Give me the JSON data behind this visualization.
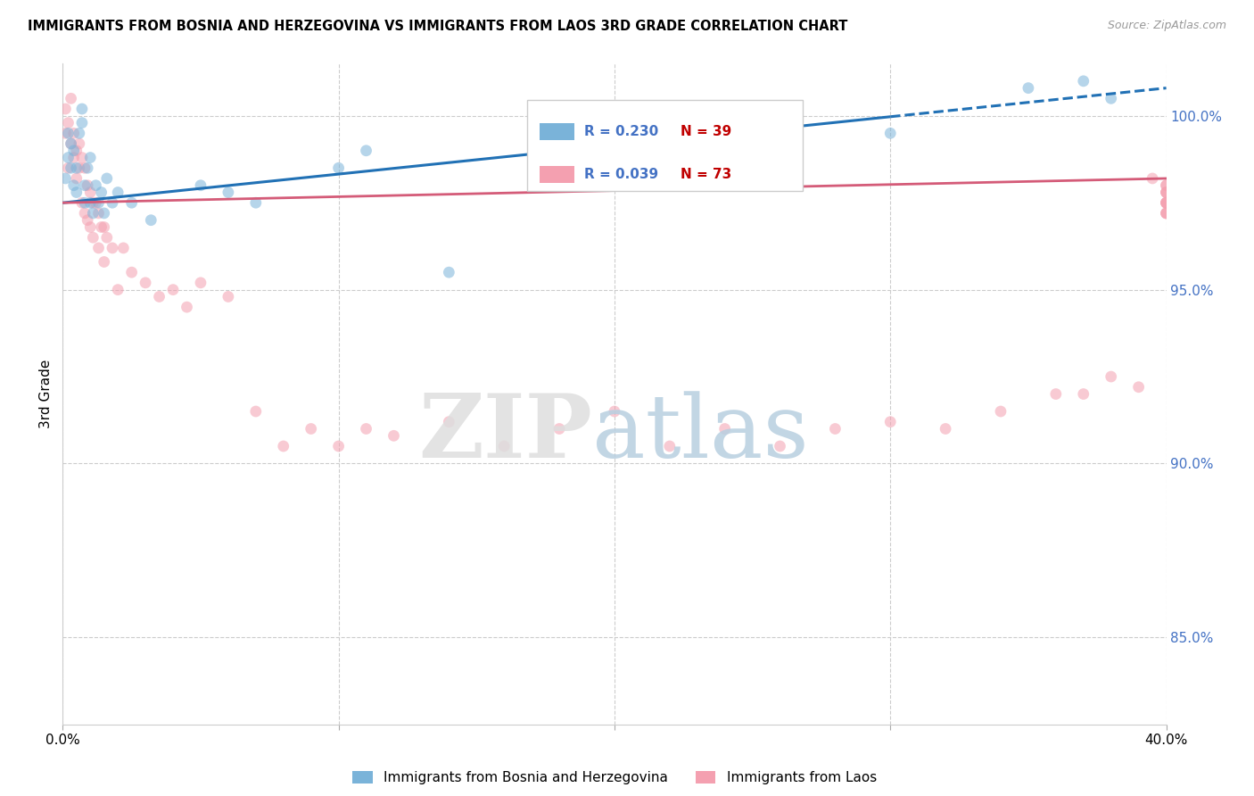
{
  "title": "IMMIGRANTS FROM BOSNIA AND HERZEGOVINA VS IMMIGRANTS FROM LAOS 3RD GRADE CORRELATION CHART",
  "source": "Source: ZipAtlas.com",
  "ylabel": "3rd Grade",
  "legend_label1": "Immigrants from Bosnia and Herzegovina",
  "legend_label2": "Immigrants from Laos",
  "r1_text": "R = 0.230",
  "n1_text": "N = 39",
  "r2_text": "R = 0.039",
  "n2_text": "N = 73",
  "color_blue": "#7ab3d9",
  "color_pink": "#f4a0b0",
  "line_color_blue": "#2171b5",
  "line_color_pink": "#d45b78",
  "xlim": [
    0.0,
    40.0
  ],
  "ylim": [
    82.5,
    101.5
  ],
  "scatter_alpha": 0.55,
  "scatter_size": 85,
  "blue_x": [
    0.1,
    0.2,
    0.2,
    0.3,
    0.3,
    0.4,
    0.4,
    0.5,
    0.5,
    0.6,
    0.7,
    0.7,
    0.8,
    0.8,
    0.9,
    1.0,
    1.0,
    1.1,
    1.2,
    1.3,
    1.4,
    1.5,
    1.6,
    1.8,
    2.0,
    2.5,
    3.2,
    5.0,
    6.0,
    7.0,
    10.0,
    11.0,
    14.0,
    20.0,
    25.0,
    30.0,
    35.0,
    37.0,
    38.0
  ],
  "blue_y": [
    98.2,
    98.8,
    99.5,
    98.5,
    99.2,
    98.0,
    99.0,
    97.8,
    98.5,
    99.5,
    99.8,
    100.2,
    97.5,
    98.0,
    98.5,
    97.5,
    98.8,
    97.2,
    98.0,
    97.5,
    97.8,
    97.2,
    98.2,
    97.5,
    97.8,
    97.5,
    97.0,
    98.0,
    97.8,
    97.5,
    98.5,
    99.0,
    95.5,
    99.0,
    100.0,
    99.5,
    100.8,
    101.0,
    100.5
  ],
  "pink_x": [
    0.1,
    0.1,
    0.2,
    0.2,
    0.3,
    0.3,
    0.4,
    0.4,
    0.5,
    0.5,
    0.6,
    0.6,
    0.7,
    0.7,
    0.8,
    0.8,
    0.9,
    0.9,
    1.0,
    1.0,
    1.1,
    1.1,
    1.2,
    1.3,
    1.3,
    1.4,
    1.5,
    1.5,
    1.6,
    1.8,
    2.0,
    2.2,
    2.5,
    3.0,
    3.5,
    4.0,
    4.5,
    5.0,
    6.0,
    7.0,
    8.0,
    9.0,
    10.0,
    11.0,
    12.0,
    14.0,
    16.0,
    18.0,
    20.0,
    22.0,
    24.0,
    26.0,
    28.0,
    30.0,
    32.0,
    34.0,
    36.0,
    37.0,
    38.0,
    39.0,
    39.5,
    40.0,
    40.0,
    40.0,
    40.0,
    40.0,
    40.0,
    40.0,
    40.0,
    40.0,
    40.0,
    40.0,
    40.0
  ],
  "pink_y": [
    99.5,
    100.2,
    98.5,
    99.8,
    99.2,
    100.5,
    98.8,
    99.5,
    98.2,
    99.0,
    98.5,
    99.2,
    97.5,
    98.8,
    97.2,
    98.5,
    97.0,
    98.0,
    96.8,
    97.8,
    96.5,
    97.5,
    97.5,
    96.2,
    97.2,
    96.8,
    95.8,
    96.8,
    96.5,
    96.2,
    95.0,
    96.2,
    95.5,
    95.2,
    94.8,
    95.0,
    94.5,
    95.2,
    94.8,
    91.5,
    90.5,
    91.0,
    90.5,
    91.0,
    90.8,
    91.2,
    90.5,
    91.0,
    91.5,
    90.5,
    91.0,
    90.5,
    91.0,
    91.2,
    91.0,
    91.5,
    92.0,
    92.0,
    92.5,
    92.2,
    98.2,
    97.5,
    98.0,
    97.8,
    97.2,
    97.5,
    97.8,
    97.5,
    97.2,
    97.8,
    97.5,
    97.2,
    98.0
  ],
  "blue_line_x": [
    0.0,
    40.0
  ],
  "blue_line_y": [
    97.5,
    100.8
  ],
  "blue_dash_start": 30.0,
  "pink_line_x": [
    0.0,
    40.0
  ],
  "pink_line_y": [
    97.5,
    98.2
  ],
  "grid_color": "#cccccc",
  "background_color": "#ffffff",
  "ytick_values": [
    85.0,
    90.0,
    95.0,
    100.0
  ]
}
